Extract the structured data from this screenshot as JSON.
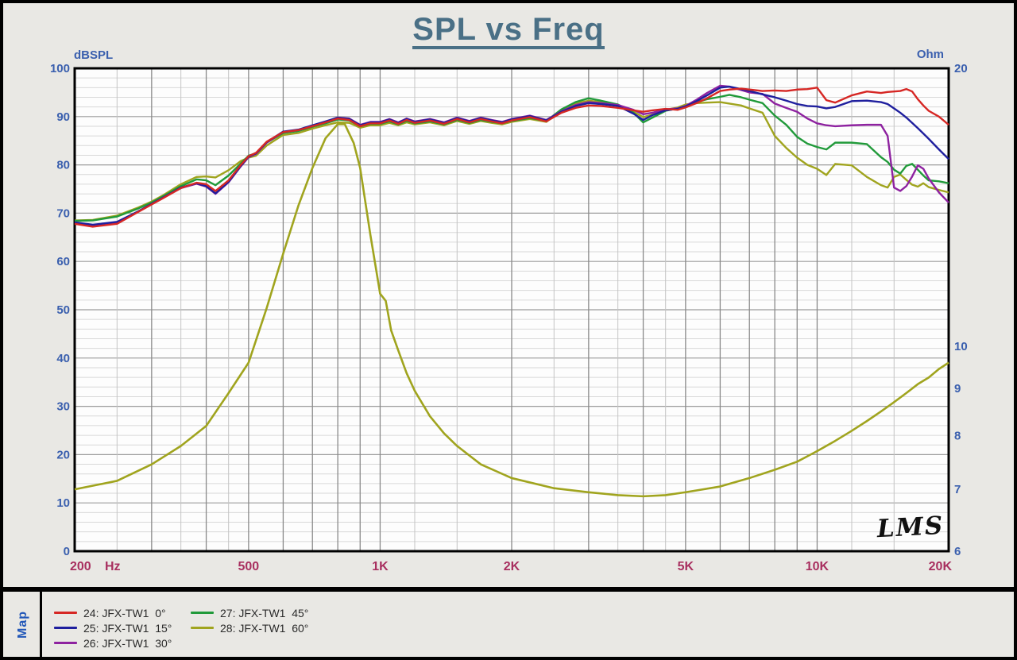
{
  "title": "SPL vs Freq",
  "map_tab": "Map",
  "logo": "LMS",
  "colors": {
    "background": "#e9e8e4",
    "plot_background": "#fdfdfd",
    "title": "#4a7086",
    "y_tick_labels": "#3a5fae",
    "x_tick_labels": "#a82f5f",
    "frame": "#000000",
    "grid_minor_h": "#d8d8d8",
    "grid_major_h": "#9c9c9c",
    "grid_minor_v": "#c4c4c4",
    "grid_major_v": "#8a8a8a",
    "curve_red": "#d62724",
    "curve_blue": "#1f1f9e",
    "curve_purple": "#8e22a0",
    "curve_green": "#219a3a",
    "curve_olive": "#a0a41e"
  },
  "legend": [
    {
      "label": "24: JFX-TW1  0°",
      "color": "#d62724",
      "col": 0,
      "row": 0
    },
    {
      "label": "25: JFX-TW1  15°",
      "color": "#1f1f9e",
      "col": 0,
      "row": 1
    },
    {
      "label": "26: JFX-TW1  30°",
      "color": "#8e22a0",
      "col": 0,
      "row": 2
    },
    {
      "label": "27: JFX-TW1  45°",
      "color": "#219a3a",
      "col": 1,
      "row": 0
    },
    {
      "label": "28: JFX-TW1  60°",
      "color": "#a0a41e",
      "col": 1,
      "row": 1
    }
  ],
  "chart_data": {
    "type": "line",
    "title": "SPL vs Freq",
    "x_scale": "log",
    "x_range": [
      200,
      20000
    ],
    "x_unit": "Hz",
    "x_ticks": [
      {
        "f": 200,
        "label": "200"
      },
      {
        "f": 500,
        "label": "500"
      },
      {
        "f": 1000,
        "label": "1K"
      },
      {
        "f": 2000,
        "label": "2K"
      },
      {
        "f": 5000,
        "label": "5K"
      },
      {
        "f": 10000,
        "label": "10K"
      },
      {
        "f": 20000,
        "label": "20K"
      }
    ],
    "x_grid_major": [
      300,
      400,
      500,
      600,
      700,
      800,
      900,
      1000,
      2000,
      3000,
      4000,
      5000,
      6000,
      7000,
      8000,
      9000,
      10000
    ],
    "x_grid_minor": [
      250,
      350,
      450,
      1200,
      1500,
      2500,
      3500,
      4500,
      12000,
      15000
    ],
    "left_axis": {
      "label": "dBSPL",
      "min": 0,
      "max": 100,
      "tick_step": 10,
      "minor_step": 2,
      "scale": "linear"
    },
    "right_axis": {
      "label": "Ohm",
      "min": 6,
      "max": 20,
      "ticks": [
        20,
        10,
        9,
        8,
        7,
        6
      ],
      "scale": "log"
    },
    "spl_frequencies": [
      200,
      220,
      250,
      280,
      300,
      320,
      350,
      380,
      400,
      420,
      450,
      480,
      500,
      520,
      550,
      600,
      650,
      700,
      750,
      800,
      850,
      900,
      950,
      1000,
      1050,
      1100,
      1150,
      1200,
      1300,
      1400,
      1500,
      1600,
      1700,
      1800,
      1900,
      2000,
      2200,
      2400,
      2600,
      2800,
      3000,
      3200,
      3500,
      3800,
      4000,
      4200,
      4500,
      4800,
      5000,
      5300,
      5600,
      6000,
      6300,
      6700,
      7000,
      7500,
      8000,
      8500,
      9000,
      9500,
      10000,
      10500,
      11000,
      12000,
      13000,
      14000,
      14500,
      15000,
      15500,
      16000,
      16500,
      17000,
      17500,
      18000,
      19000,
      20000
    ],
    "series": [
      {
        "name": "28: JFX-TW1  60°",
        "axis": "left",
        "color": "#a0a41e",
        "values": [
          68.5,
          68.6,
          69.5,
          71.2,
          72.4,
          73.8,
          76.0,
          77.5,
          77.6,
          77.4,
          78.9,
          80.8,
          81.5,
          81.9,
          84.0,
          86.2,
          86.6,
          87.5,
          88.2,
          88.8,
          88.7,
          87.7,
          88.2,
          88.2,
          88.7,
          88.2,
          88.8,
          88.4,
          88.8,
          88.2,
          89.1,
          88.5,
          89.1,
          88.7,
          88.4,
          88.9,
          89.5,
          88.9,
          91.3,
          92.7,
          93.3,
          93.0,
          92.3,
          91.0,
          89.9,
          90.4,
          91.4,
          91.9,
          92.5,
          92.8,
          92.9,
          93.0,
          92.7,
          92.3,
          91.7,
          90.8,
          86.0,
          83.5,
          81.5,
          80.0,
          79.2,
          77.9,
          80.2,
          79.9,
          77.5,
          75.8,
          75.3,
          77.5,
          78.0,
          76.9,
          75.9,
          75.5,
          76.2,
          75.4,
          74.8,
          74.3
        ]
      },
      {
        "name": "27: JFX-TW1  45°",
        "axis": "left",
        "color": "#219a3a",
        "values": [
          68.4,
          68.5,
          69.3,
          71.0,
          72.2,
          73.6,
          75.6,
          77.0,
          76.8,
          75.8,
          77.8,
          80.3,
          81.9,
          82.4,
          84.6,
          86.6,
          87.0,
          87.9,
          88.6,
          89.4,
          89.2,
          88.0,
          88.5,
          88.5,
          89.0,
          88.4,
          89.1,
          88.6,
          89.0,
          88.4,
          89.3,
          88.7,
          89.3,
          88.9,
          88.6,
          89.1,
          89.7,
          89.1,
          91.5,
          93.0,
          93.8,
          93.3,
          92.5,
          90.8,
          88.8,
          89.8,
          91.2,
          91.7,
          92.2,
          93.0,
          93.6,
          94.1,
          94.5,
          94.0,
          93.5,
          92.8,
          90.2,
          88.3,
          85.8,
          84.4,
          83.7,
          83.2,
          84.6,
          84.6,
          84.3,
          81.6,
          80.6,
          79.0,
          78.2,
          79.8,
          80.2,
          79.0,
          77.8,
          76.8,
          76.6,
          76.2
        ]
      },
      {
        "name": "26: JFX-TW1  30°",
        "axis": "left",
        "color": "#8e22a0",
        "values": [
          68.0,
          67.5,
          68.1,
          70.4,
          71.9,
          73.3,
          75.2,
          76.1,
          75.5,
          74.0,
          76.4,
          79.7,
          81.6,
          82.3,
          84.6,
          86.8,
          87.2,
          88.1,
          88.9,
          89.8,
          89.6,
          88.3,
          88.9,
          88.9,
          89.5,
          88.8,
          89.6,
          89.0,
          89.5,
          88.8,
          89.8,
          89.1,
          89.8,
          89.3,
          88.9,
          89.5,
          90.2,
          89.3,
          91.1,
          92.4,
          93.0,
          92.8,
          92.4,
          91.4,
          90.5,
          90.8,
          91.5,
          91.7,
          92.2,
          93.5,
          94.9,
          96.4,
          96.2,
          95.5,
          95.0,
          94.7,
          92.7,
          91.8,
          91.0,
          89.6,
          88.6,
          88.2,
          88.0,
          88.2,
          88.3,
          88.3,
          86.0,
          75.3,
          74.6,
          75.6,
          77.6,
          79.9,
          79.2,
          77.2,
          74.3,
          72.2
        ]
      },
      {
        "name": "25: JFX-TW1  15°",
        "axis": "left",
        "color": "#1f1f9e",
        "values": [
          68.1,
          67.6,
          68.2,
          70.4,
          71.9,
          73.3,
          75.3,
          76.2,
          75.6,
          74.1,
          76.5,
          79.8,
          81.7,
          82.4,
          84.7,
          86.9,
          87.3,
          88.2,
          89.0,
          89.8,
          89.5,
          88.2,
          88.8,
          88.8,
          89.4,
          88.7,
          89.5,
          88.9,
          89.4,
          88.7,
          89.7,
          89.0,
          89.7,
          89.2,
          88.8,
          89.4,
          90.1,
          89.2,
          91.0,
          92.2,
          92.8,
          92.6,
          92.2,
          90.6,
          89.3,
          90.3,
          91.3,
          91.6,
          92.1,
          93.2,
          94.4,
          96.0,
          96.2,
          95.7,
          95.3,
          94.6,
          94.0,
          93.3,
          92.6,
          92.2,
          92.1,
          91.7,
          92.0,
          93.2,
          93.3,
          93.0,
          92.6,
          91.7,
          90.8,
          89.8,
          88.7,
          87.6,
          86.5,
          85.4,
          83.2,
          81.2
        ]
      },
      {
        "name": "24: JFX-TW1  0°",
        "axis": "left",
        "color": "#d62724",
        "values": [
          67.8,
          67.2,
          67.8,
          70.3,
          71.8,
          73.2,
          75.2,
          76.3,
          76.0,
          74.6,
          76.8,
          80.0,
          81.8,
          82.5,
          84.8,
          86.8,
          87.2,
          88.0,
          88.8,
          89.6,
          89.3,
          88.0,
          88.6,
          88.6,
          89.2,
          88.5,
          89.3,
          88.7,
          89.2,
          88.5,
          89.5,
          88.8,
          89.5,
          89.0,
          88.6,
          89.2,
          89.9,
          89.0,
          90.8,
          91.8,
          92.3,
          92.2,
          91.8,
          91.3,
          91.0,
          91.3,
          91.6,
          91.4,
          91.9,
          92.8,
          93.8,
          95.3,
          95.6,
          95.8,
          95.6,
          95.3,
          95.4,
          95.3,
          95.6,
          95.7,
          96.0,
          93.4,
          92.9,
          94.4,
          95.2,
          94.9,
          95.1,
          95.2,
          95.3,
          95.7,
          95.2,
          93.6,
          92.3,
          91.2,
          90.0,
          88.3
        ]
      }
    ],
    "impedance_series": {
      "name": "impedance",
      "axis": "right",
      "color": "#a0a41e",
      "unit": "Ohm",
      "frequencies": [
        200,
        250,
        300,
        350,
        400,
        450,
        500,
        550,
        600,
        650,
        700,
        750,
        800,
        830,
        870,
        900,
        950,
        1000,
        1030,
        1060,
        1100,
        1150,
        1200,
        1300,
        1400,
        1500,
        1700,
        2000,
        2500,
        3000,
        3500,
        4000,
        4500,
        5000,
        6000,
        7000,
        8000,
        9000,
        10000,
        11000,
        12000,
        13000,
        14000,
        15000,
        16000,
        17000,
        18000,
        19000,
        20000
      ],
      "values": [
        7.0,
        7.15,
        7.45,
        7.8,
        8.2,
        8.9,
        9.6,
        11.0,
        12.6,
        14.2,
        15.6,
        16.8,
        17.4,
        17.4,
        16.6,
        15.6,
        13.2,
        11.4,
        11.2,
        10.4,
        9.9,
        9.35,
        8.95,
        8.4,
        8.05,
        7.8,
        7.45,
        7.2,
        7.02,
        6.95,
        6.9,
        6.88,
        6.9,
        6.95,
        7.05,
        7.2,
        7.35,
        7.5,
        7.7,
        7.9,
        8.1,
        8.3,
        8.5,
        8.7,
        8.9,
        9.1,
        9.25,
        9.45,
        9.6
      ]
    }
  }
}
